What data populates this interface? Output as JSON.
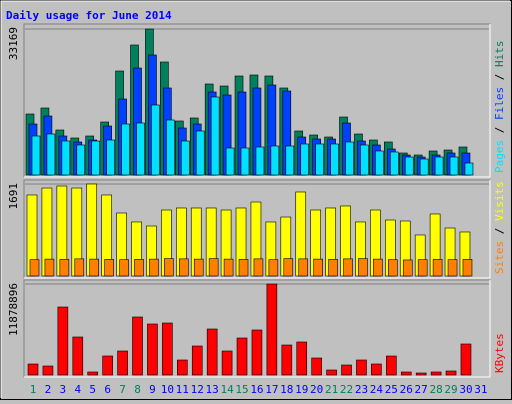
{
  "title": "Daily usage for June 2014",
  "legend_separator": "/",
  "chart_data": [
    {
      "type": "bar",
      "ylim": [
        0,
        33169
      ],
      "yticks": [
        33169
      ],
      "series": [
        {
          "name": "Hits",
          "color": "#00805c",
          "values": [
            13858,
            15221,
            10223,
            8406,
            8860,
            12041,
            23627,
            29533,
            33169,
            25671,
            12268,
            12949,
            20673,
            20219,
            22491,
            22718,
            22491,
            19765,
            9996,
            9087,
            8633,
            13176,
            9314,
            7951,
            7497,
            4998,
            4544,
            5452,
            5680,
            6361,
            0
          ]
        },
        {
          "name": "Files",
          "color": "#0040ff",
          "values": [
            11586,
            13404,
            8860,
            7497,
            7951,
            11132,
            17266,
            24308,
            27262,
            19765,
            10677,
            11586,
            18856,
            18174,
            18856,
            19765,
            20446,
            19083,
            8633,
            8178,
            8178,
            11813,
            7724,
            6815,
            5907,
            4544,
            4089,
            4544,
            4998,
            4998,
            0
          ]
        },
        {
          "name": "Pages",
          "color": "#00e0ff",
          "values": [
            8860,
            9314,
            7724,
            6815,
            7724,
            7951,
            11586,
            11813,
            15903,
            12495,
            7724,
            9996,
            17720,
            6134,
            6134,
            6361,
            6588,
            6588,
            7043,
            7043,
            7043,
            7497,
            6815,
            5452,
            5225,
            4089,
            3635,
            4089,
            4089,
            2726,
            0
          ]
        }
      ]
    },
    {
      "type": "bar",
      "ylim": [
        0,
        1691
      ],
      "yticks": [
        1691
      ],
      "series": [
        {
          "name": "Visits",
          "color": "#ffff00",
          "values": [
            1489,
            1617,
            1654,
            1617,
            1691,
            1489,
            1158,
            993,
            919,
            1213,
            1250,
            1250,
            1250,
            1213,
            1250,
            1360,
            993,
            1084,
            1544,
            1213,
            1250,
            1287,
            993,
            1213,
            1029,
            1011,
            754,
            1140,
            882,
            809,
            0
          ]
        },
        {
          "name": "Sites",
          "color": "#ff8000",
          "values": [
            300,
            310,
            305,
            315,
            310,
            305,
            300,
            305,
            310,
            320,
            315,
            310,
            320,
            310,
            305,
            315,
            300,
            320,
            315,
            310,
            305,
            315,
            320,
            310,
            300,
            295,
            300,
            305,
            300,
            305,
            0
          ]
        }
      ]
    },
    {
      "type": "bar",
      "ylim": [
        0,
        11878896
      ],
      "yticks": [
        11878896
      ],
      "categories": [
        1,
        2,
        3,
        4,
        5,
        6,
        7,
        8,
        9,
        10,
        11,
        12,
        13,
        14,
        15,
        16,
        17,
        18,
        19,
        20,
        21,
        22,
        23,
        24,
        25,
        26,
        27,
        28,
        29,
        30,
        31
      ],
      "category_colors": [
        "#00805c",
        "#0000ff",
        "#0000ff",
        "#0000ff",
        "#0000ff",
        "#0000ff",
        "#00805c",
        "#00805c",
        "#0000ff",
        "#0000ff",
        "#0000ff",
        "#0000ff",
        "#0000ff",
        "#00805c",
        "#00805c",
        "#0000ff",
        "#0000ff",
        "#0000ff",
        "#0000ff",
        "#0000ff",
        "#00805c",
        "#00805c",
        "#0000ff",
        "#0000ff",
        "#0000ff",
        "#0000ff",
        "#0000ff",
        "#00805c",
        "#00805c",
        "#0000ff",
        "#0000ff"
      ],
      "series": [
        {
          "name": "KBytes",
          "color": "#ff0000",
          "values": [
            1435907,
            1174833,
            8876516,
            4960406,
            391611,
            2480203,
            3132888,
            7571146,
            6657387,
            6787924,
            1958055,
            3785573,
            6004702,
            3132888,
            4829869,
            5874165,
            11878896,
            3916100,
            4307711,
            2219129,
            652685,
            1305370,
            1958055,
            1435907,
            2480203,
            391611,
            261074,
            391611,
            522148,
            4046637,
            0
          ]
        }
      ]
    }
  ]
}
